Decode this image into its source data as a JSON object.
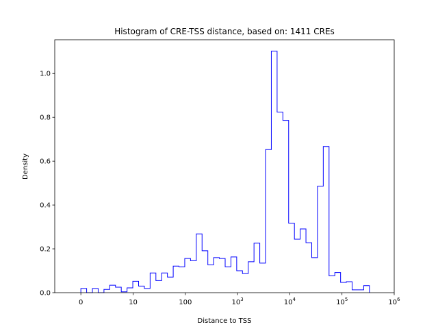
{
  "chart_data": {
    "type": "histogram",
    "histtype": "step",
    "title": "Histogram of CRE-TSS distance, based on: 1411 CREs",
    "xlabel": "Distance to TSS",
    "ylabel": "Density",
    "x_scale": "symlog",
    "x_linthresh": 10,
    "xlim": [
      -5,
      1000000
    ],
    "ylim": [
      0,
      1.154
    ],
    "grid": false,
    "color": "#0000ff",
    "bin_range": [
      0,
      335700
    ],
    "densities": [
      0.019,
      0.0,
      0.019,
      0.0,
      0.015,
      0.034,
      0.025,
      0.004,
      0.022,
      0.052,
      0.03,
      0.019,
      0.09,
      0.055,
      0.09,
      0.071,
      0.121,
      0.118,
      0.156,
      0.146,
      0.268,
      0.191,
      0.127,
      0.16,
      0.156,
      0.118,
      0.163,
      0.1,
      0.087,
      0.141,
      0.226,
      0.135,
      0.653,
      1.102,
      0.824,
      0.786,
      0.317,
      0.244,
      0.291,
      0.228,
      0.16,
      0.486,
      0.667,
      0.077,
      0.092,
      0.047,
      0.05,
      0.013,
      0.013,
      0.032
    ],
    "x_ticks": [
      {
        "value": 0,
        "label": "0",
        "sup": ""
      },
      {
        "value": 10,
        "label": "10",
        "sup": ""
      },
      {
        "value": 100,
        "label": "100",
        "sup": ""
      },
      {
        "value": 1000,
        "label": "10",
        "sup": "3"
      },
      {
        "value": 10000,
        "label": "10",
        "sup": "4"
      },
      {
        "value": 100000,
        "label": "10",
        "sup": "5"
      },
      {
        "value": 1000000,
        "label": "10",
        "sup": "6"
      }
    ],
    "y_ticks": [
      {
        "value": 0.0,
        "label": "0.0"
      },
      {
        "value": 0.2,
        "label": "0.2"
      },
      {
        "value": 0.4,
        "label": "0.4"
      },
      {
        "value": 0.6,
        "label": "0.6"
      },
      {
        "value": 0.8,
        "label": "0.8"
      },
      {
        "value": 1.0,
        "label": "1.0"
      }
    ]
  }
}
